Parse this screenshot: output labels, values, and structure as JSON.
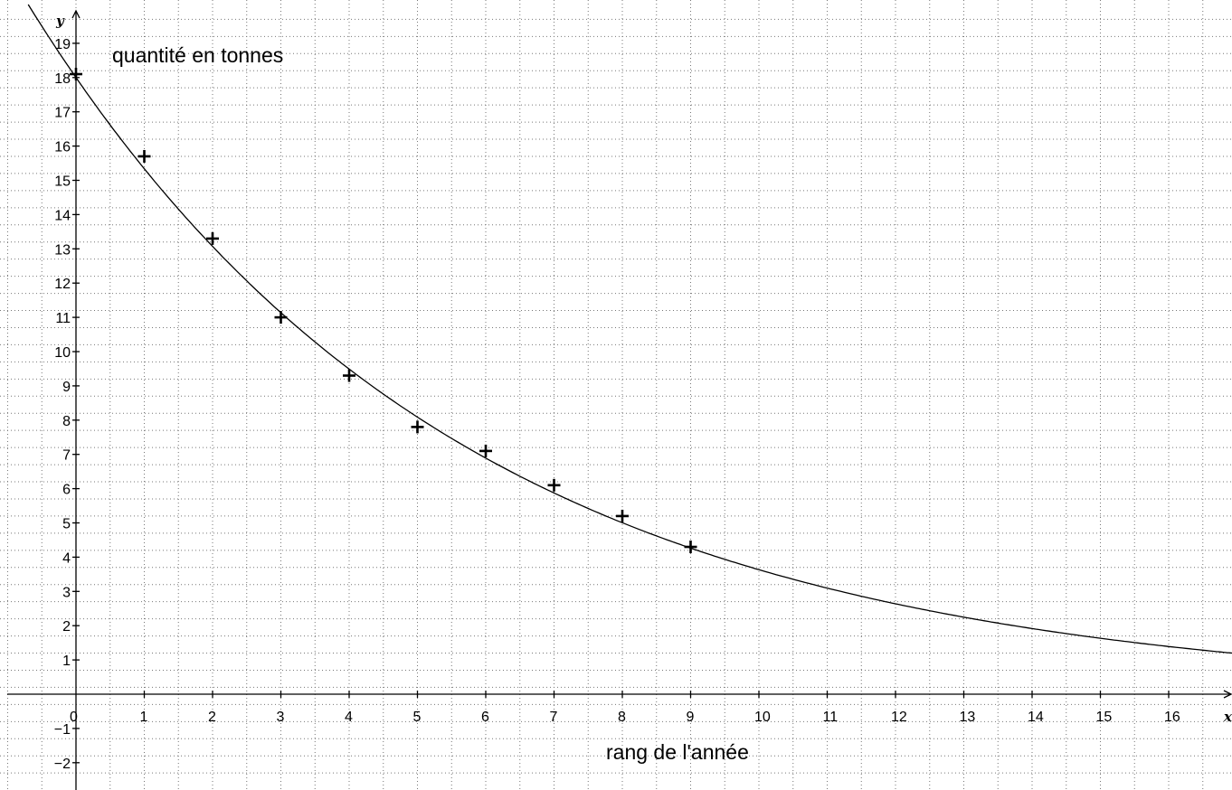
{
  "chart_data": {
    "type": "scatter",
    "title": "",
    "xlabel": "x",
    "ylabel": "y",
    "xlim": [
      -1,
      17
    ],
    "ylim": [
      -2.8,
      20.1
    ],
    "grid": true,
    "x_ticks": [
      0,
      1,
      2,
      3,
      4,
      5,
      6,
      7,
      8,
      9,
      10,
      11,
      12,
      13,
      14,
      15,
      16
    ],
    "y_ticks": [
      -2,
      -1,
      1,
      2,
      3,
      4,
      5,
      6,
      7,
      8,
      9,
      10,
      11,
      12,
      13,
      14,
      15,
      16,
      17,
      18,
      19
    ],
    "annotations": {
      "y_axis_title": "quantité en tonnes",
      "x_axis_title": "rang de l'année"
    },
    "series": [
      {
        "x": [
          0,
          1,
          2,
          3,
          4,
          5,
          6,
          7,
          8,
          9
        ],
        "y": [
          18.1,
          15.7,
          13.3,
          11.0,
          9.3,
          7.8,
          7.1,
          6.1,
          5.2,
          4.3
        ],
        "marker": "plus"
      }
    ],
    "curve": {
      "type": "exponential",
      "a": 18.0,
      "b": -0.16,
      "x_range": [
        -0.7,
        17
      ]
    }
  }
}
